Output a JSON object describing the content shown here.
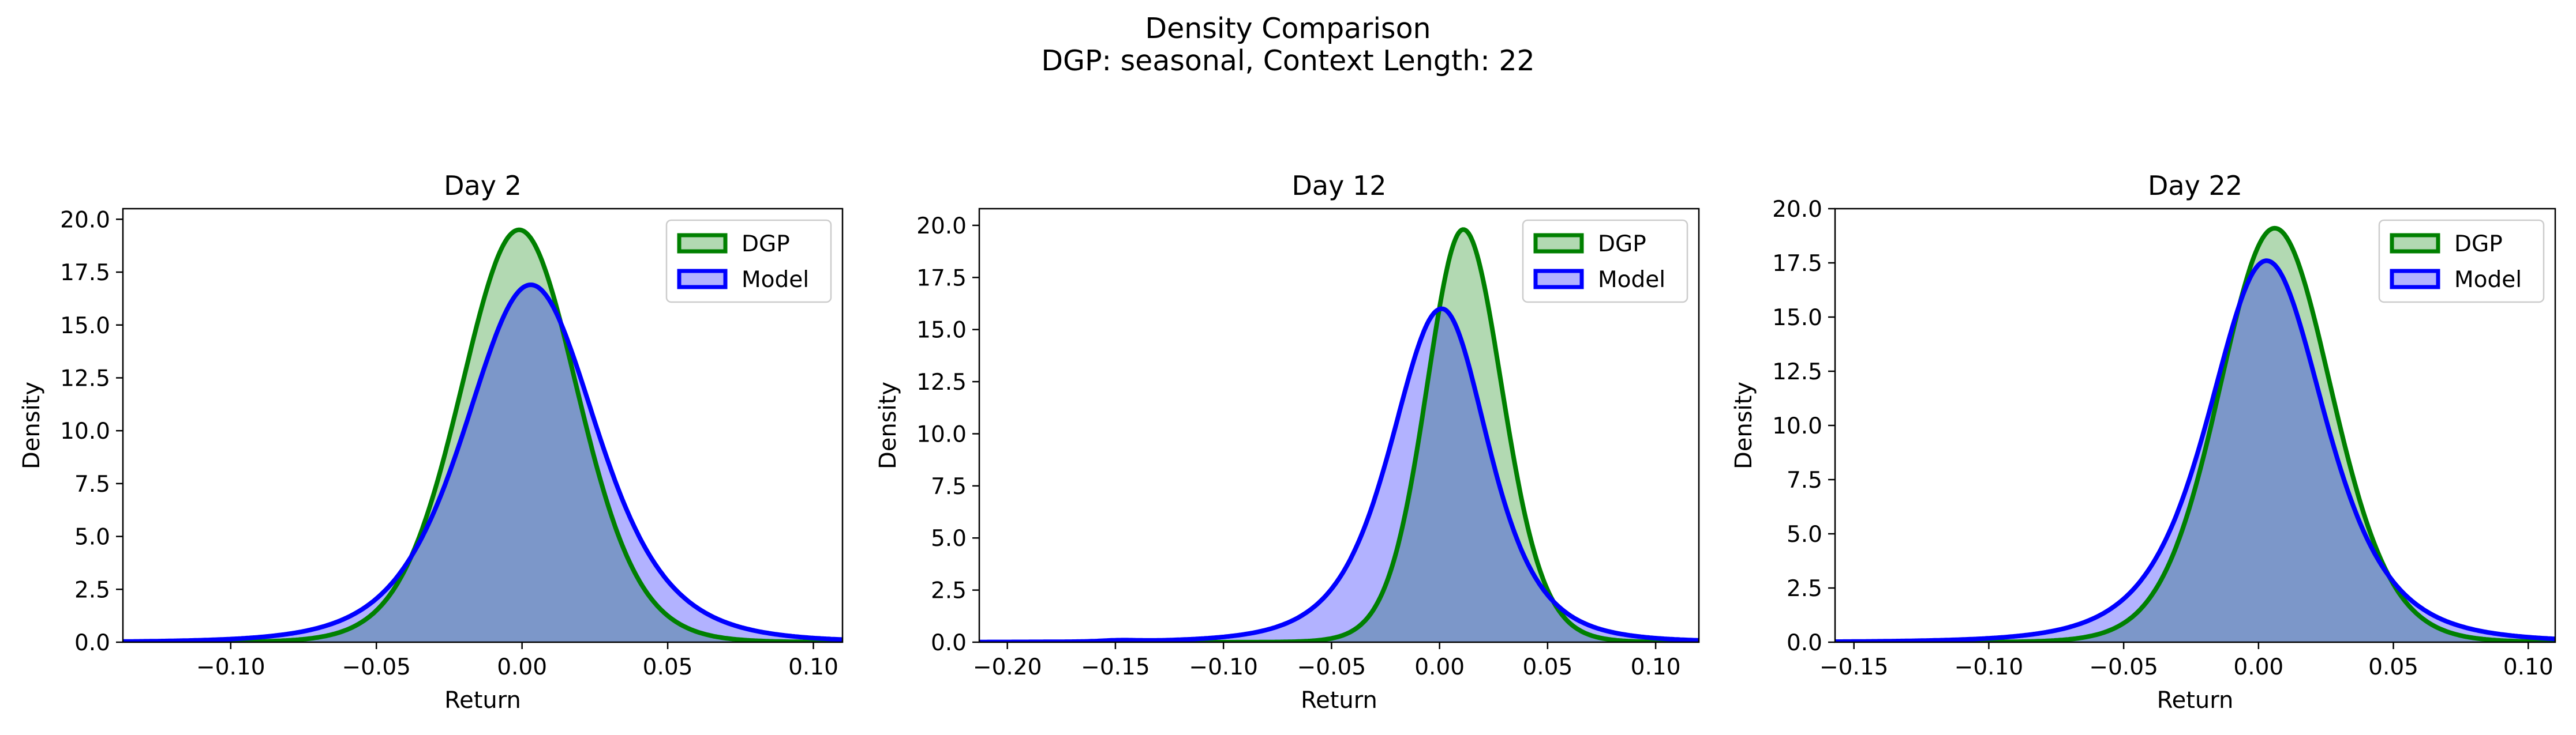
{
  "figure": {
    "title_line1": "Density Comparison",
    "title_line2": "DGP: seasonal, Context Length: 22"
  },
  "colors": {
    "dgp_line": "#008000",
    "dgp_fill": "#008000",
    "model_line": "#0000ff",
    "model_fill": "#0000ff"
  },
  "chart_data": [
    {
      "type": "area",
      "title": "Day 2",
      "xlabel": "Return",
      "ylabel": "Density",
      "xlim": [
        -0.137,
        0.11
      ],
      "ylim": [
        0,
        20.5
      ],
      "xticks": [
        -0.1,
        -0.05,
        0.0,
        0.05,
        0.1
      ],
      "xtick_labels": [
        "−0.10",
        "−0.05",
        "0.00",
        "0.05",
        "0.10"
      ],
      "yticks": [
        0,
        2.5,
        5,
        7.5,
        10,
        12.5,
        15,
        17.5,
        20
      ],
      "ytick_labels": [
        "0.0",
        "2.5",
        "5.0",
        "7.5",
        "10.0",
        "12.5",
        "15.0",
        "17.5",
        "20.0"
      ],
      "legend": "upper right",
      "grid": false,
      "series": [
        {
          "name": "DGP",
          "peak_x": -0.001,
          "peak_y": 19.5
        },
        {
          "name": "Model",
          "peak_x": 0.003,
          "peak_y": 16.9
        }
      ]
    },
    {
      "type": "area",
      "title": "Day 12",
      "xlabel": "Return",
      "ylabel": "Density",
      "xlim": [
        -0.213,
        0.12
      ],
      "ylim": [
        0,
        20.8
      ],
      "xticks": [
        -0.2,
        -0.15,
        -0.1,
        -0.05,
        0.0,
        0.05,
        0.1
      ],
      "xtick_labels": [
        "−0.20",
        "−0.15",
        "−0.10",
        "−0.05",
        "0.00",
        "0.05",
        "0.10"
      ],
      "yticks": [
        0,
        2.5,
        5,
        7.5,
        10,
        12.5,
        15,
        17.5,
        20
      ],
      "ytick_labels": [
        "0.0",
        "2.5",
        "5.0",
        "7.5",
        "10.0",
        "12.5",
        "15.0",
        "17.5",
        "20.0"
      ],
      "legend": "upper right",
      "grid": false,
      "series": [
        {
          "name": "DGP",
          "peak_x": 0.011,
          "peak_y": 19.8
        },
        {
          "name": "Model",
          "peak_x": 0.001,
          "peak_y": 16.0
        }
      ]
    },
    {
      "type": "area",
      "title": "Day 22",
      "xlabel": "Return",
      "ylabel": "Density",
      "xlim": [
        -0.157,
        0.11
      ],
      "ylim": [
        0,
        20.0
      ],
      "xticks": [
        -0.15,
        -0.1,
        -0.05,
        0.0,
        0.05,
        0.1
      ],
      "xtick_labels": [
        "−0.15",
        "−0.10",
        "−0.05",
        "0.00",
        "0.05",
        "0.10"
      ],
      "yticks": [
        0,
        2.5,
        5,
        7.5,
        10,
        12.5,
        15,
        17.5,
        20
      ],
      "ytick_labels": [
        "0.0",
        "2.5",
        "5.0",
        "7.5",
        "10.0",
        "12.5",
        "15.0",
        "17.5",
        "20.0"
      ],
      "legend": "upper right",
      "grid": false,
      "series": [
        {
          "name": "DGP",
          "peak_x": 0.006,
          "peak_y": 19.1
        },
        {
          "name": "Model",
          "peak_x": 0.003,
          "peak_y": 17.6
        }
      ]
    }
  ]
}
